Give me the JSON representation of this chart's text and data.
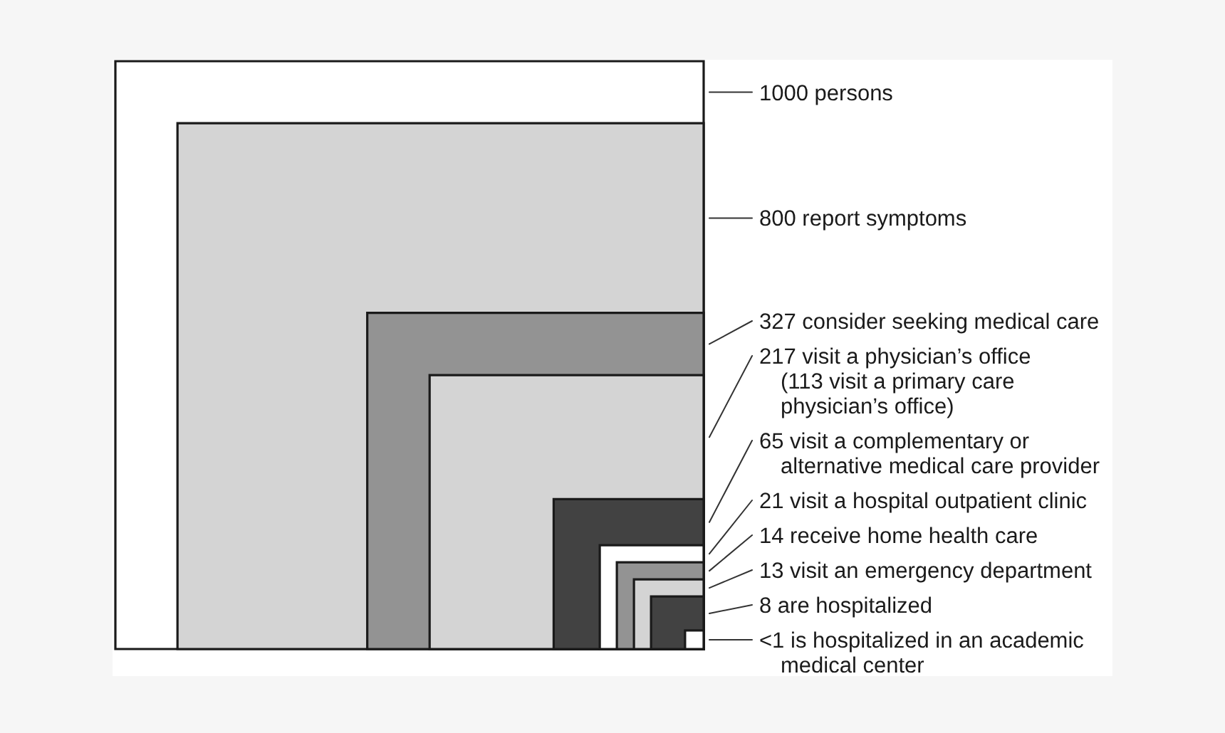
{
  "chart_data": {
    "type": "other",
    "categories": [
      "persons",
      "report symptoms",
      "consider seeking medical care",
      "visit a physician’s office\n(113 visit a primary care\nphysician’s office)",
      "visit a complementary or\nalternative medical care provider",
      "visit a hospital outpatient clinic",
      "receive home health care",
      "visit an emergency department",
      "are hospitalized",
      "is hospitalized in an academic\nmedical center"
    ],
    "values": [
      1000,
      800,
      327,
      217,
      65,
      21,
      14,
      13,
      8,
      1
    ],
    "value_labels": [
      "1000",
      "800",
      "327",
      "217",
      "65",
      "21",
      "14",
      "13",
      "8",
      "<1"
    ],
    "colors": [
      "#ffffff",
      "#d4d4d4",
      "#939393",
      "#d4d4d4",
      "#424242",
      "#ffffff",
      "#939393",
      "#d4d4d4",
      "#424242",
      "#ffffff"
    ]
  }
}
